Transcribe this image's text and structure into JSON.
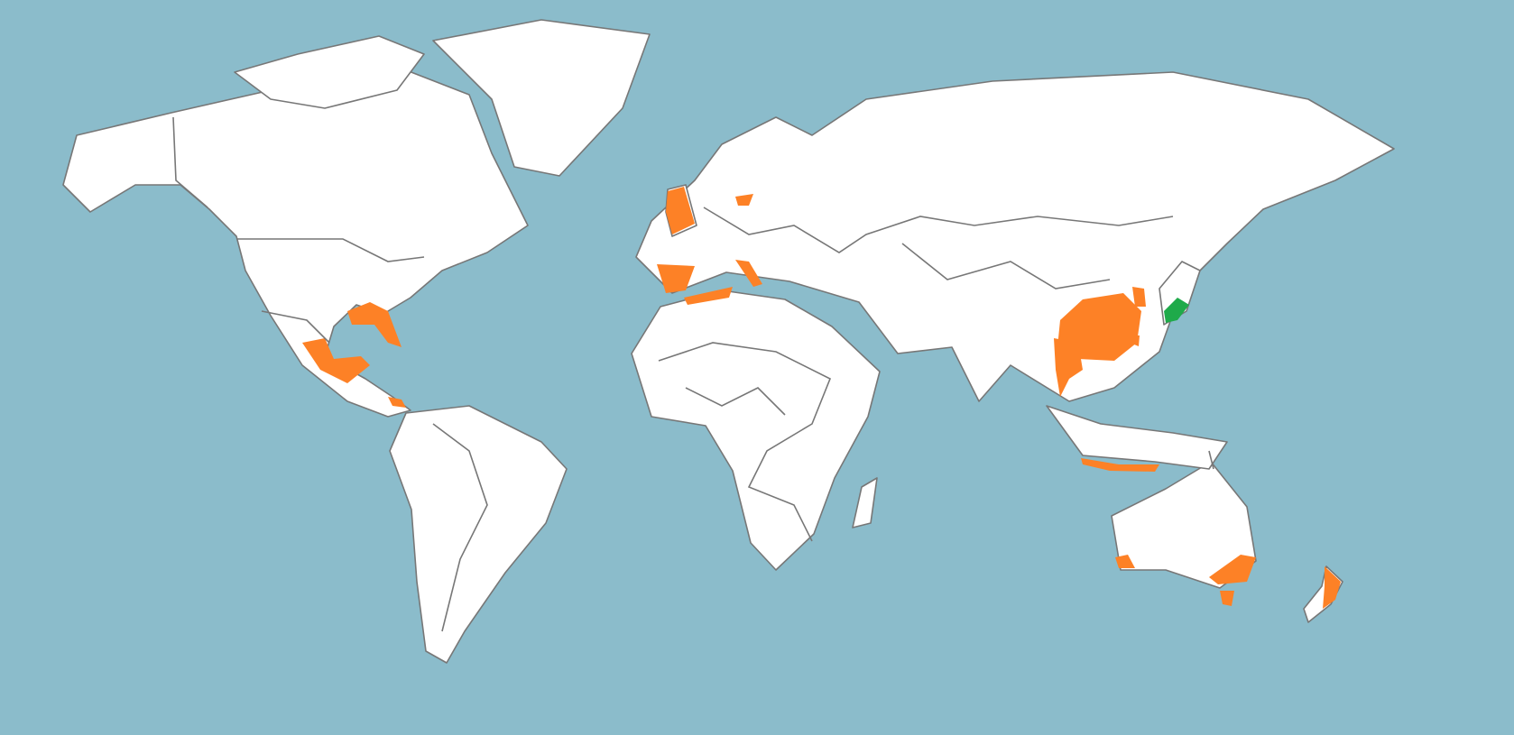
{
  "map": {
    "colors": {
      "ocean": "#8bbccb",
      "land": "#ffffff",
      "border": "#777777",
      "highlight_primary": "#fd8126",
      "highlight_secondary": "#1faa4a"
    }
  }
}
